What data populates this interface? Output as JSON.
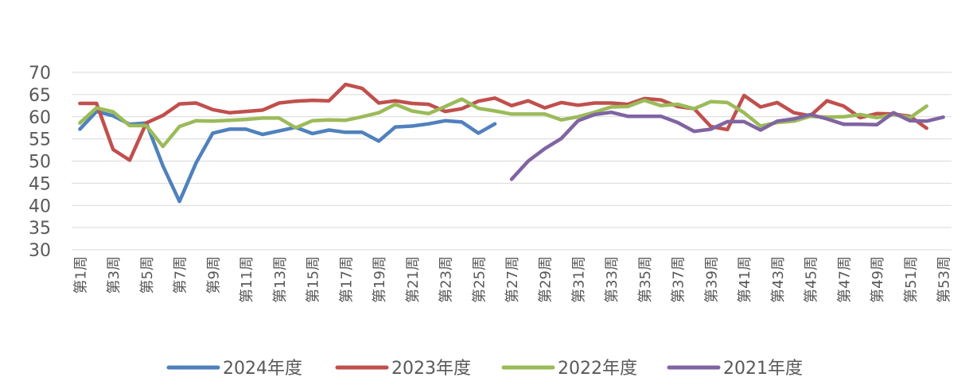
{
  "chart_data": {
    "type": "line",
    "title": "",
    "xlabel": "",
    "ylabel": "",
    "ylim": [
      30,
      70
    ],
    "yticks": [
      30,
      35,
      40,
      45,
      50,
      55,
      60,
      65,
      70
    ],
    "grid": true,
    "legend_position": "bottom",
    "categories": [
      "第1周",
      "第2周",
      "第3周",
      "第4周",
      "第5周",
      "第6周",
      "第7周",
      "第8周",
      "第9周",
      "第10周",
      "第11周",
      "第12周",
      "第13周",
      "第14周",
      "第15周",
      "第16周",
      "第17周",
      "第18周",
      "第19周",
      "第20周",
      "第21周",
      "第22周",
      "第23周",
      "第24周",
      "第25周",
      "第26周",
      "第27周",
      "第28周",
      "第29周",
      "第30周",
      "第31周",
      "第32周",
      "第33周",
      "第34周",
      "第35周",
      "第36周",
      "第37周",
      "第38周",
      "第39周",
      "第40周",
      "第41周",
      "第42周",
      "第43周",
      "第44周",
      "第45周",
      "第46周",
      "第47周",
      "第48周",
      "第49周",
      "第50周",
      "第51周",
      "第52周",
      "第53周"
    ],
    "x_tick_labels": [
      "第1周",
      "第3周",
      "第5周",
      "第7周",
      "第9周",
      "第11周",
      "第13周",
      "第15周",
      "第17周",
      "第19周",
      "第21周",
      "第23周",
      "第25周",
      "第27周",
      "第29周",
      "第31周",
      "第33周",
      "第35周",
      "第37周",
      "第39周",
      "第41周",
      "第43周",
      "第45周",
      "第47周",
      "第49周",
      "第51周",
      "第53周"
    ],
    "series": [
      {
        "name": "2024年度",
        "color": "#4f81bd",
        "values": [
          57.2,
          61.2,
          60.2,
          58.3,
          58.6,
          48.9,
          40.9,
          49.6,
          56.3,
          57.2,
          57.2,
          56.0,
          56.8,
          57.6,
          56.2,
          57.0,
          56.5,
          56.5,
          54.5,
          57.7,
          57.9,
          58.4,
          59.1,
          58.8,
          56.3,
          58.4,
          null,
          null,
          null,
          null,
          null,
          null,
          null,
          null,
          null,
          null,
          null,
          null,
          null,
          null,
          null,
          null,
          null,
          null,
          null,
          null,
          null,
          null,
          null,
          null,
          null,
          null,
          null
        ]
      },
      {
        "name": "2023年度",
        "color": "#c0504d",
        "values": [
          63.0,
          63.0,
          52.6,
          50.2,
          58.6,
          60.3,
          62.9,
          63.1,
          61.6,
          60.9,
          61.2,
          61.5,
          63.1,
          63.5,
          63.7,
          63.6,
          67.3,
          66.4,
          63.1,
          63.6,
          63.0,
          62.8,
          61.2,
          61.8,
          63.5,
          64.2,
          62.5,
          63.6,
          62.0,
          63.2,
          62.6,
          63.1,
          63.1,
          62.8,
          64.1,
          63.8,
          62.3,
          61.8,
          57.8,
          57.1,
          64.8,
          62.2,
          63.2,
          60.9,
          60.2,
          63.6,
          62.4,
          59.8,
          60.7,
          60.6,
          60.1,
          57.4,
          null
        ]
      },
      {
        "name": "2022年度",
        "color": "#9bbb59",
        "values": [
          58.6,
          62.0,
          61.1,
          58.0,
          58.0,
          53.3,
          57.8,
          59.1,
          59.0,
          59.2,
          59.4,
          59.7,
          59.7,
          57.5,
          59.1,
          59.3,
          59.2,
          60.0,
          60.9,
          62.8,
          61.3,
          60.7,
          62.3,
          64.0,
          61.9,
          61.3,
          60.6,
          60.6,
          60.6,
          59.3,
          60.0,
          61.0,
          62.2,
          62.3,
          63.7,
          62.5,
          62.8,
          61.8,
          63.4,
          63.2,
          60.9,
          57.9,
          58.7,
          59.0,
          60.1,
          59.9,
          60.0,
          60.5,
          59.8,
          60.5,
          59.8,
          62.4,
          null
        ]
      },
      {
        "name": "2021年度",
        "color": "#8064a2",
        "values": [
          null,
          null,
          null,
          null,
          null,
          null,
          null,
          null,
          null,
          null,
          null,
          null,
          null,
          null,
          null,
          null,
          null,
          null,
          null,
          null,
          null,
          null,
          null,
          null,
          null,
          null,
          45.9,
          50.0,
          52.8,
          55.1,
          59.1,
          60.5,
          61.0,
          60.1,
          60.1,
          60.1,
          58.7,
          56.7,
          57.2,
          58.9,
          58.9,
          57.0,
          59.0,
          59.5,
          60.5,
          59.5,
          58.3,
          58.3,
          58.2,
          60.9,
          59.1,
          59.0,
          59.9
        ]
      }
    ]
  }
}
